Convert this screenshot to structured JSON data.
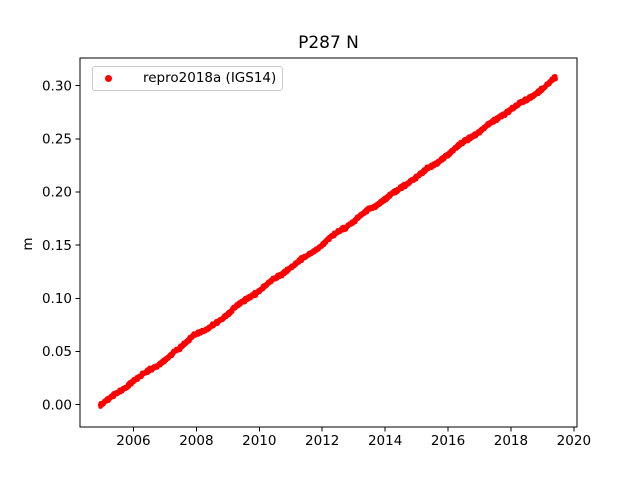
{
  "chart_data": {
    "type": "scatter",
    "title": "P287 N",
    "xlabel": "",
    "ylabel": "m",
    "xlim": [
      2004.3,
      2020.1
    ],
    "ylim": [
      -0.021,
      0.326
    ],
    "grid": false,
    "xticks": [
      {
        "value": 2006,
        "label": "2006"
      },
      {
        "value": 2008,
        "label": "2008"
      },
      {
        "value": 2010,
        "label": "2010"
      },
      {
        "value": 2012,
        "label": "2012"
      },
      {
        "value": 2014,
        "label": "2014"
      },
      {
        "value": 2016,
        "label": "2016"
      },
      {
        "value": 2018,
        "label": "2018"
      },
      {
        "value": 2020,
        "label": "2020"
      }
    ],
    "yticks": [
      {
        "value": 0.0,
        "label": "0.00"
      },
      {
        "value": 0.05,
        "label": "0.05"
      },
      {
        "value": 0.1,
        "label": "0.10"
      },
      {
        "value": 0.15,
        "label": "0.15"
      },
      {
        "value": 0.2,
        "label": "0.20"
      },
      {
        "value": 0.25,
        "label": "0.25"
      },
      {
        "value": 0.3,
        "label": "0.30"
      }
    ],
    "legend": {
      "position": "upper left",
      "entries": [
        {
          "label": "repro2018a (IGS14)",
          "marker": "dot",
          "color": "#ff0000"
        }
      ]
    },
    "series": [
      {
        "name": "repro2018a (IGS14)",
        "color": "#ff0000",
        "marker": "dot",
        "marker_size_px": 4.5,
        "trend_rate_m_per_yr": 0.0213,
        "anchors": [
          [
            2004.94,
            0.0
          ],
          [
            2005.5,
            0.011
          ],
          [
            2006.0,
            0.0225
          ],
          [
            2006.5,
            0.032
          ],
          [
            2007.0,
            0.0425
          ],
          [
            2007.5,
            0.0535
          ],
          [
            2007.92,
            0.0665
          ],
          [
            2008.3,
            0.0695
          ],
          [
            2009.0,
            0.0855
          ],
          [
            2009.5,
            0.0975
          ],
          [
            2010.0,
            0.1075
          ],
          [
            2010.5,
            0.1185
          ],
          [
            2011.0,
            0.129
          ],
          [
            2011.5,
            0.1395
          ],
          [
            2012.0,
            0.1505
          ],
          [
            2012.5,
            0.162
          ],
          [
            2013.0,
            0.1725
          ],
          [
            2013.5,
            0.1835
          ],
          [
            2014.0,
            0.1935
          ],
          [
            2014.5,
            0.2035
          ],
          [
            2015.0,
            0.2145
          ],
          [
            2015.5,
            0.2245
          ],
          [
            2016.0,
            0.2355
          ],
          [
            2016.5,
            0.247
          ],
          [
            2017.0,
            0.257
          ],
          [
            2017.5,
            0.2675
          ],
          [
            2018.0,
            0.278
          ],
          [
            2018.5,
            0.2865
          ],
          [
            2019.0,
            0.2975
          ],
          [
            2019.43,
            0.3075
          ]
        ],
        "sampling": {
          "step_years": 0.006,
          "seasonal_amplitude_m": 0.0007,
          "noise_std_m": 0.0008,
          "seed": 7
        }
      }
    ]
  }
}
